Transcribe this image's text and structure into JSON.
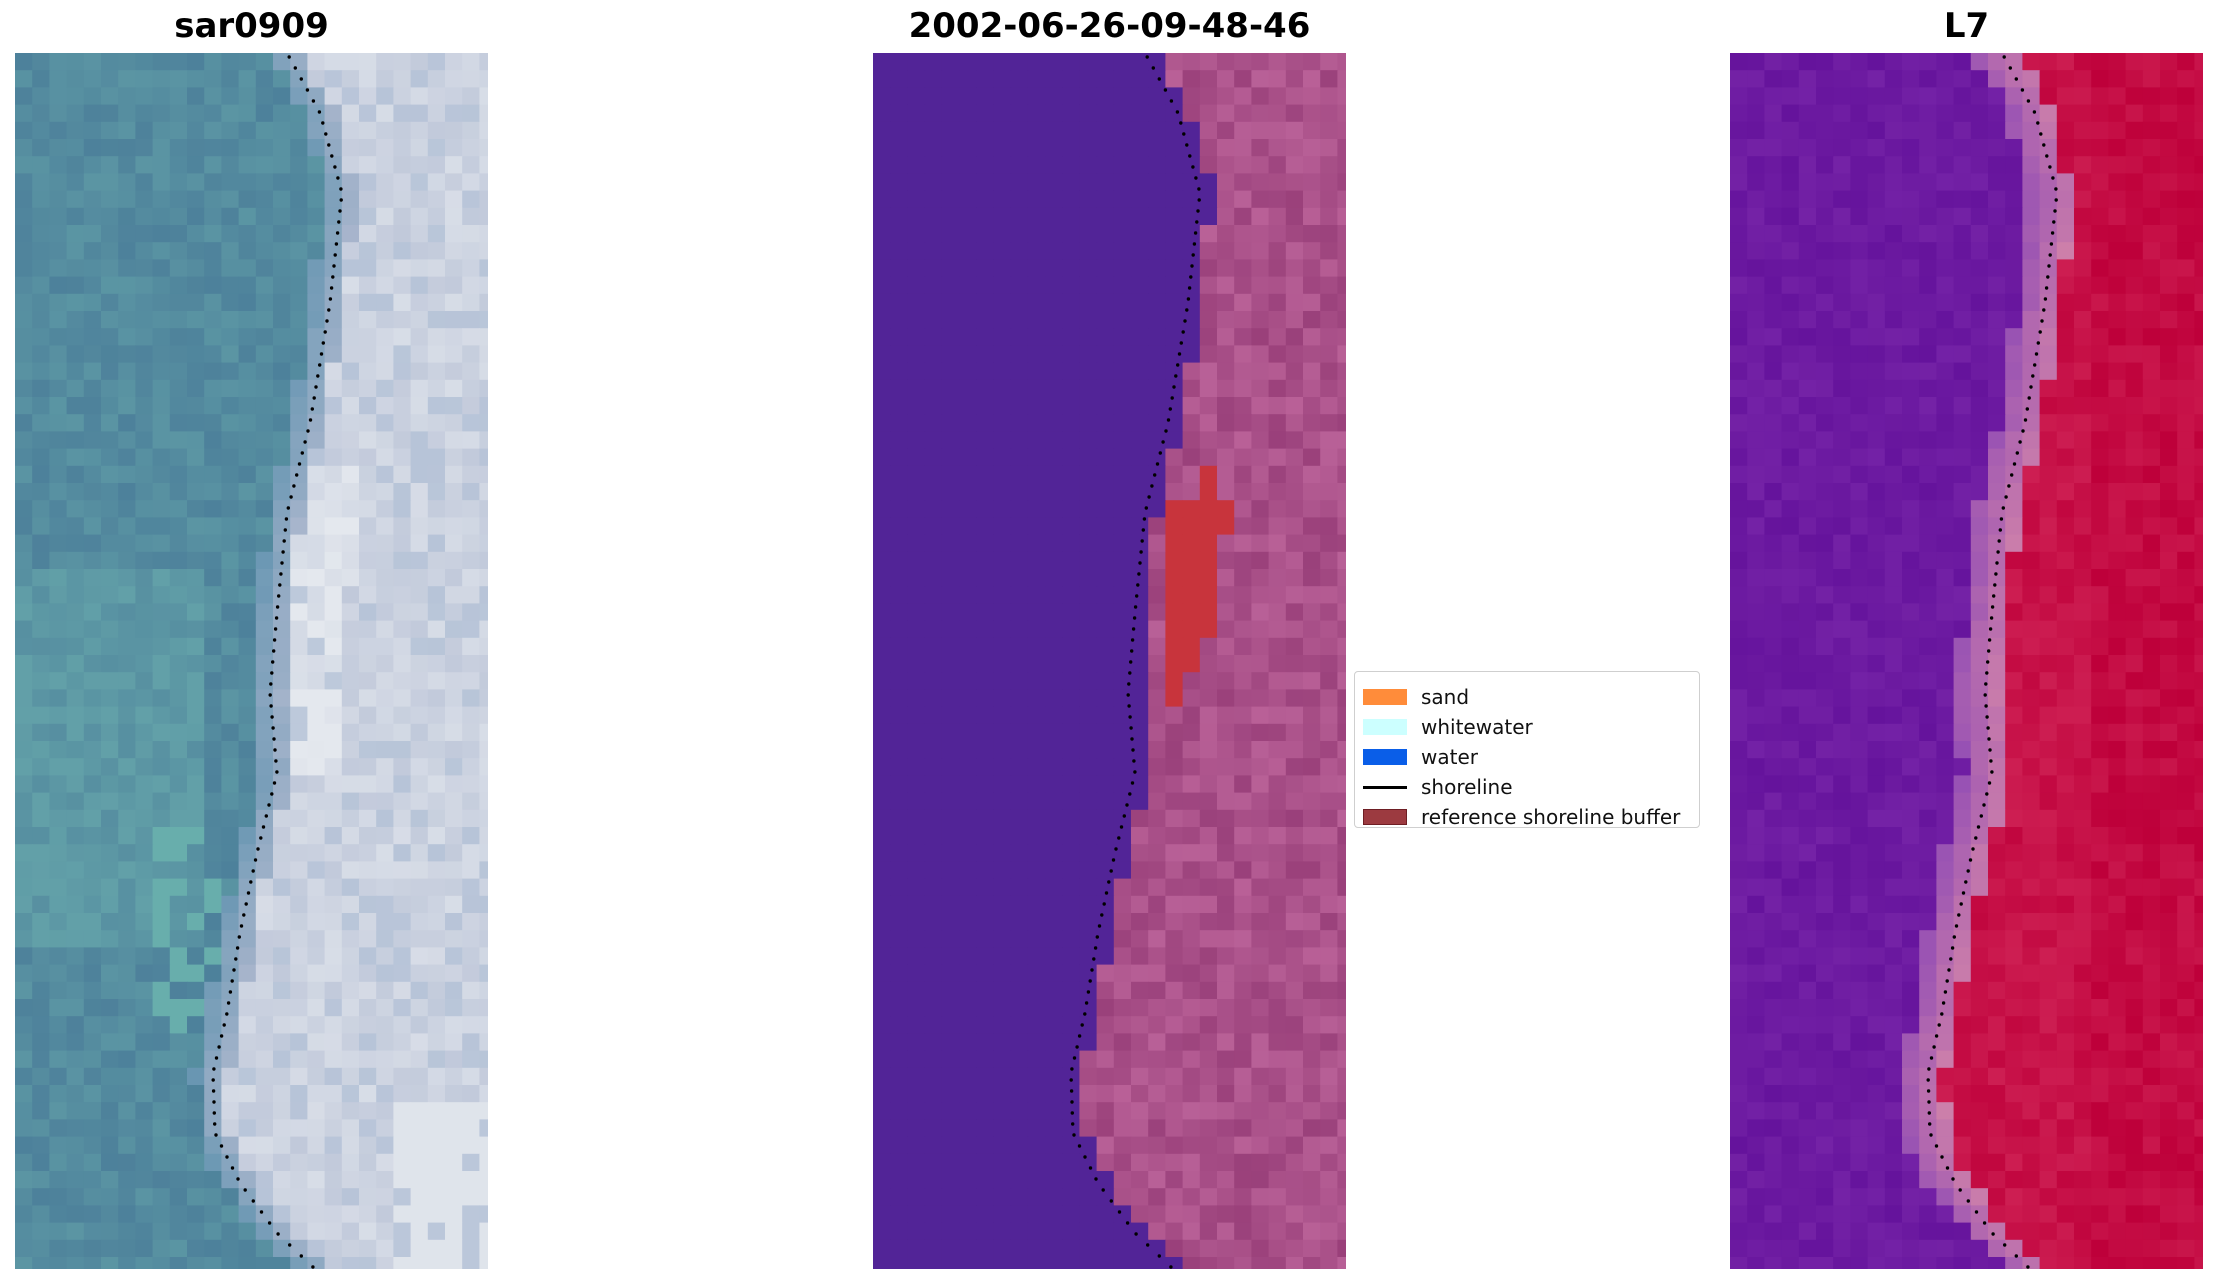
{
  "panels": [
    {
      "title": "sar0909",
      "kind": "rgb"
    },
    {
      "title": "2002-06-26-09-48-46",
      "kind": "classification"
    },
    {
      "title": "L7",
      "kind": "index"
    }
  ],
  "legend": {
    "items": [
      {
        "label": "sand",
        "type": "patch",
        "color": "#ff8c3a",
        "edge": "#ff8c3a"
      },
      {
        "label": "whitewater",
        "type": "patch",
        "color": "#ccffff",
        "edge": "#ccffff"
      },
      {
        "label": "water",
        "type": "patch",
        "color": "#0a5ee8",
        "edge": "#0a5ee8"
      },
      {
        "label": "shoreline",
        "type": "line",
        "color": "#000000",
        "edge": "#000000"
      },
      {
        "label": "reference shoreline buffer",
        "type": "patch",
        "color": "#9c3a40",
        "edge": "#6e1e24"
      }
    ]
  },
  "colors": {
    "water_overlay": "#522497",
    "buffer_overlay": "#c8343c",
    "shoreline": "#000000"
  }
}
